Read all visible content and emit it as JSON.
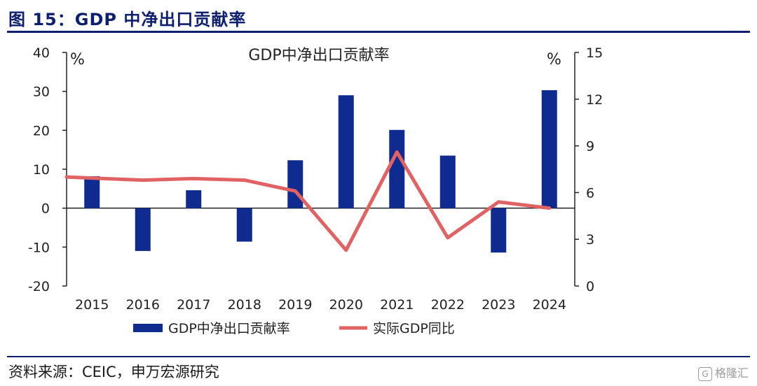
{
  "figure": {
    "title": "图 15：GDP 中净出口贡献率",
    "source": "资料来源：CEIC，申万宏源研究",
    "watermark": "格隆汇",
    "watermark_logo": "G"
  },
  "chart_data": {
    "type": "bar",
    "title": "GDP中净出口贡献率",
    "categories": [
      "2015",
      "2016",
      "2017",
      "2018",
      "2019",
      "2020",
      "2021",
      "2022",
      "2023",
      "2024"
    ],
    "y_left": {
      "unit": "%",
      "ylim": [
        -20,
        40
      ],
      "ticks": [
        -20,
        -10,
        0,
        10,
        20,
        30,
        40
      ]
    },
    "y_right": {
      "unit": "%",
      "ylim": [
        0,
        15
      ],
      "ticks": [
        0,
        3,
        6,
        9,
        12,
        15
      ]
    },
    "series": [
      {
        "name": "GDP中净出口贡献率",
        "type": "bar",
        "axis": "left",
        "color": "#0f2b8f",
        "values": [
          8.2,
          -11.0,
          4.6,
          -8.6,
          12.3,
          29.0,
          20.1,
          13.5,
          -11.4,
          30.3
        ]
      },
      {
        "name": "实际GDP同比",
        "type": "line",
        "axis": "right",
        "color": "#e06262",
        "values": [
          7.0,
          6.8,
          6.9,
          6.8,
          6.1,
          2.3,
          8.6,
          3.1,
          5.4,
          5.0
        ]
      }
    ],
    "grid": false,
    "legend_position": "bottom"
  }
}
